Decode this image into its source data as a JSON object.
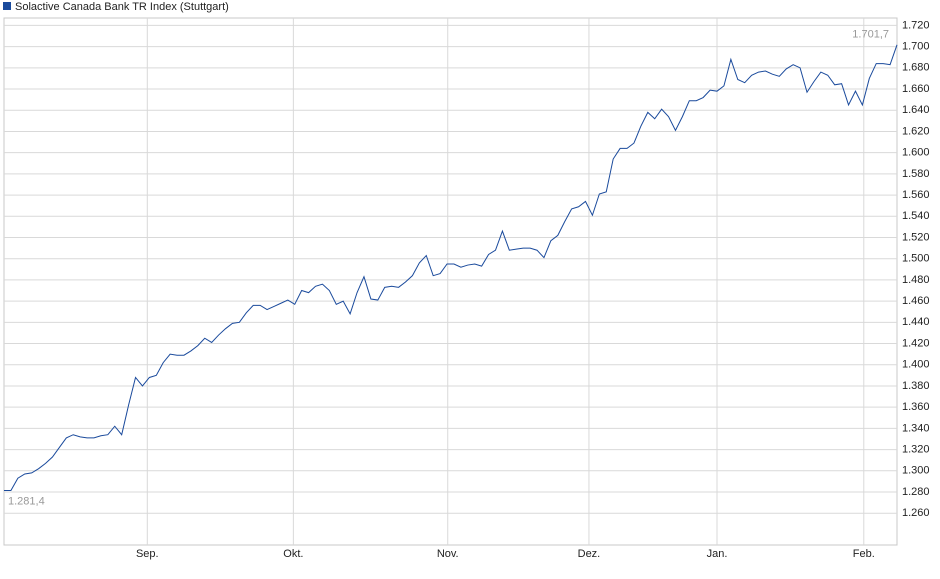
{
  "chart_data": {
    "type": "line",
    "legend": "top-left",
    "grid": true,
    "series": [
      {
        "name": "Solactive Canada Bank TR Index (Stuttgart)",
        "color": "#1a4a9c",
        "values": [
          1281.4,
          1281.4,
          1293,
          1297,
          1298,
          1302,
          1307,
          1313,
          1322,
          1331,
          1334,
          1332,
          1331,
          1331,
          1333,
          1334,
          1342,
          1334,
          1362,
          1388,
          1380,
          1388,
          1390,
          1402,
          1410,
          1409,
          1409,
          1413,
          1418,
          1425,
          1421,
          1428,
          1434,
          1439,
          1440,
          1449,
          1456,
          1456,
          1452,
          1455,
          1458,
          1461,
          1457,
          1470,
          1468,
          1474,
          1476,
          1470,
          1457,
          1460,
          1448,
          1468,
          1483,
          1462,
          1461,
          1473,
          1474,
          1473,
          1478,
          1484,
          1496,
          1503,
          1484,
          1486,
          1495,
          1495,
          1492,
          1494,
          1495,
          1493,
          1504,
          1508,
          1526,
          1508,
          1509,
          1510,
          1510,
          1508,
          1501,
          1517,
          1522,
          1535,
          1547,
          1549,
          1554,
          1541,
          1561,
          1563,
          1594,
          1604,
          1604,
          1609,
          1625,
          1638,
          1632,
          1641,
          1634,
          1621,
          1634,
          1649,
          1649,
          1652,
          1659,
          1658,
          1663,
          1688,
          1669,
          1666,
          1673,
          1676,
          1677,
          1674,
          1672,
          1679,
          1683,
          1680,
          1657,
          1667,
          1676,
          1673,
          1664,
          1665,
          1645,
          1658,
          1645,
          1670,
          1684,
          1684,
          1683,
          1701.7
        ]
      }
    ],
    "start_label": "1.281,4",
    "end_label": "1.701,7",
    "xlim": [
      0,
      129
    ],
    "xticks": [
      {
        "value": 20.7,
        "label": "Sep."
      },
      {
        "value": 41.8,
        "label": "Okt."
      },
      {
        "value": 64.1,
        "label": "Nov."
      },
      {
        "value": 84.5,
        "label": "Dez."
      },
      {
        "value": 103.0,
        "label": "Jan."
      },
      {
        "value": 124.2,
        "label": "Feb."
      }
    ],
    "ylim": [
      1230,
      1727
    ],
    "yticks": [
      {
        "value": 1260,
        "label": "1.260"
      },
      {
        "value": 1280,
        "label": "1.280"
      },
      {
        "value": 1300,
        "label": "1.300"
      },
      {
        "value": 1320,
        "label": "1.320"
      },
      {
        "value": 1340,
        "label": "1.340"
      },
      {
        "value": 1360,
        "label": "1.360"
      },
      {
        "value": 1380,
        "label": "1.380"
      },
      {
        "value": 1400,
        "label": "1.400"
      },
      {
        "value": 1420,
        "label": "1.420"
      },
      {
        "value": 1440,
        "label": "1.440"
      },
      {
        "value": 1460,
        "label": "1.460"
      },
      {
        "value": 1480,
        "label": "1.480"
      },
      {
        "value": 1500,
        "label": "1.500"
      },
      {
        "value": 1520,
        "label": "1.520"
      },
      {
        "value": 1540,
        "label": "1.540"
      },
      {
        "value": 1560,
        "label": "1.560"
      },
      {
        "value": 1580,
        "label": "1.580"
      },
      {
        "value": 1600,
        "label": "1.600"
      },
      {
        "value": 1620,
        "label": "1.620"
      },
      {
        "value": 1640,
        "label": "1.640"
      },
      {
        "value": 1660,
        "label": "1.660"
      },
      {
        "value": 1680,
        "label": "1.680"
      },
      {
        "value": 1700,
        "label": "1.700"
      },
      {
        "value": 1720,
        "label": "1.720"
      }
    ]
  }
}
